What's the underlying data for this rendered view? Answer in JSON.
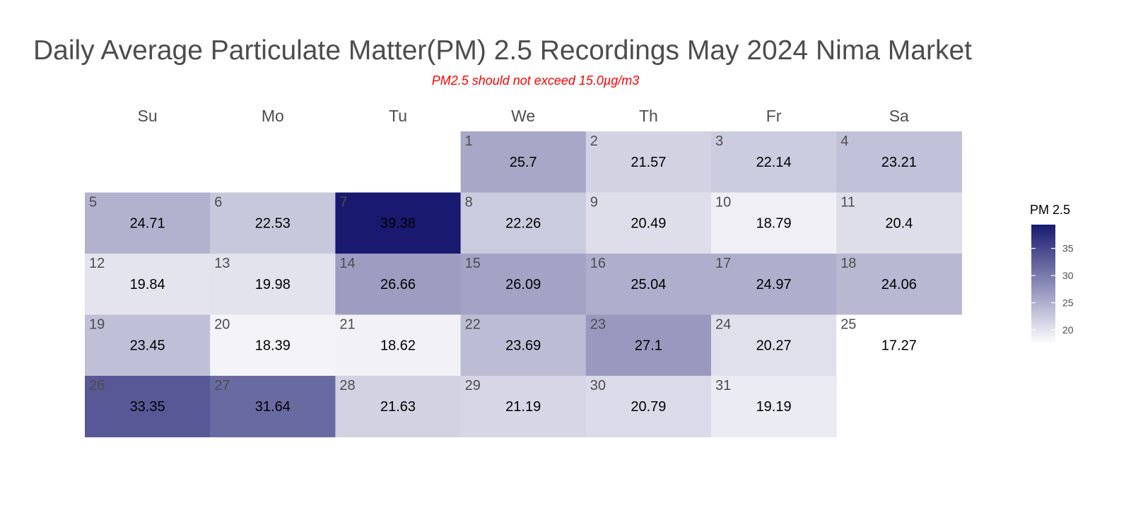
{
  "title": "Daily Average Particulate Matter(PM) 2.5 Recordings May 2024 Nima Market",
  "subtitle": "PM2.5 should not exceed 15.0µg/m3",
  "chart_data": {
    "type": "heatmap",
    "layout": "calendar",
    "weekdays": [
      "Su",
      "Mo",
      "Tu",
      "We",
      "Th",
      "Fr",
      "Sa"
    ],
    "first_weekday_index": 3,
    "days": [
      {
        "day": 1,
        "value": 25.7
      },
      {
        "day": 2,
        "value": 21.57
      },
      {
        "day": 3,
        "value": 22.14
      },
      {
        "day": 4,
        "value": 23.21
      },
      {
        "day": 5,
        "value": 24.71
      },
      {
        "day": 6,
        "value": 22.53
      },
      {
        "day": 7,
        "value": 39.38
      },
      {
        "day": 8,
        "value": 22.26
      },
      {
        "day": 9,
        "value": 20.49
      },
      {
        "day": 10,
        "value": 18.79
      },
      {
        "day": 11,
        "value": 20.4
      },
      {
        "day": 12,
        "value": 19.84
      },
      {
        "day": 13,
        "value": 19.98
      },
      {
        "day": 14,
        "value": 26.66
      },
      {
        "day": 15,
        "value": 26.09
      },
      {
        "day": 16,
        "value": 25.04
      },
      {
        "day": 17,
        "value": 24.97
      },
      {
        "day": 18,
        "value": 24.06
      },
      {
        "day": 19,
        "value": 23.45
      },
      {
        "day": 20,
        "value": 18.39
      },
      {
        "day": 21,
        "value": 18.62
      },
      {
        "day": 22,
        "value": 23.69
      },
      {
        "day": 23,
        "value": 27.1
      },
      {
        "day": 24,
        "value": 20.27
      },
      {
        "day": 25,
        "value": 17.27
      },
      {
        "day": 26,
        "value": 33.35
      },
      {
        "day": 27,
        "value": 31.64
      },
      {
        "day": 28,
        "value": 21.63
      },
      {
        "day": 29,
        "value": 21.19
      },
      {
        "day": 30,
        "value": 20.79
      },
      {
        "day": 31,
        "value": 19.19
      }
    ],
    "legend": {
      "title": "PM 2.5",
      "ticks": [
        20,
        25,
        30,
        35
      ],
      "range": [
        17.27,
        39.38
      ],
      "low_color": "#ffffff",
      "high_color": "#191970"
    }
  }
}
